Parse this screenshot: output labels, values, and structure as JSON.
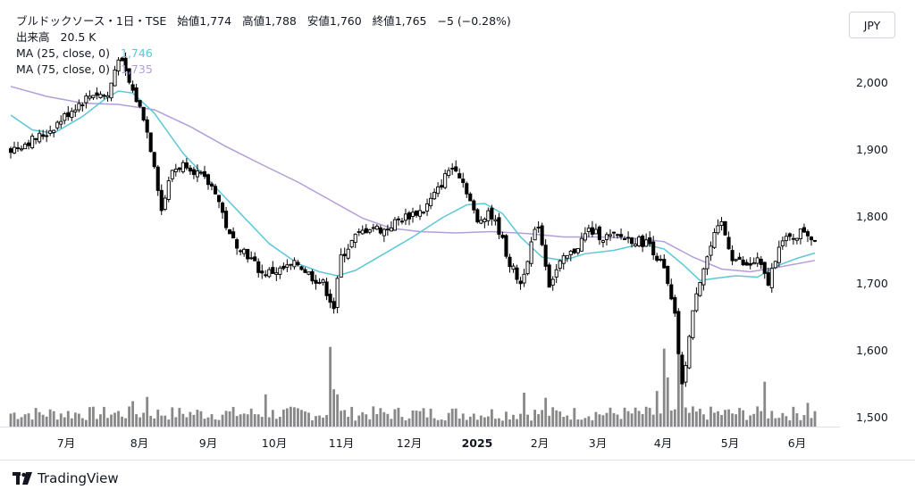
{
  "header": {
    "symbol": "ブルドックソース・1日・TSE",
    "open_label": "始値",
    "open": "1,774",
    "high_label": "高値",
    "high": "1,788",
    "low_label": "安値",
    "low": "1,760",
    "close_label": "終値",
    "close": "1,765",
    "change": "−5 (−0.28%)",
    "volume_label": "出来高",
    "volume": "20.5 K",
    "ma25_label": "MA (25, close, 0)",
    "ma25_value": "1,746",
    "ma75_label": "MA (75, close, 0)",
    "ma75_value": "1,735"
  },
  "currency_button": "JPY",
  "brand": "TradingView",
  "colors": {
    "ma25": "#5ac8d8",
    "ma75": "#b39ddb",
    "candle": "#000000",
    "volume": "#888888"
  },
  "chart_data": {
    "type": "candlestick",
    "y_ticks": [
      "2,000",
      "1,900",
      "1,800",
      "1,700",
      "1,600",
      "1,500"
    ],
    "x_ticks": [
      "7月",
      "8月",
      "9月",
      "10月",
      "11月",
      "12月",
      "2025",
      "2月",
      "3月",
      "4月",
      "5月",
      "6月"
    ],
    "ylim": [
      1490,
      2060
    ],
    "close_path": [
      {
        "day": 0,
        "close": 1900
      },
      {
        "day": 10,
        "close": 1925
      },
      {
        "day": 18,
        "close": 1965
      },
      {
        "day": 23,
        "close": 1985
      },
      {
        "day": 27,
        "close": 1980
      },
      {
        "day": 30,
        "close": 2040
      },
      {
        "day": 33,
        "close": 2000
      },
      {
        "day": 37,
        "close": 1950
      },
      {
        "day": 40,
        "close": 1880
      },
      {
        "day": 42,
        "close": 1810
      },
      {
        "day": 45,
        "close": 1870
      },
      {
        "day": 49,
        "close": 1880
      },
      {
        "day": 53,
        "close": 1860
      },
      {
        "day": 57,
        "close": 1840
      },
      {
        "day": 61,
        "close": 1770
      },
      {
        "day": 65,
        "close": 1750
      },
      {
        "day": 70,
        "close": 1715
      },
      {
        "day": 75,
        "close": 1720
      },
      {
        "day": 80,
        "close": 1730
      },
      {
        "day": 84,
        "close": 1710
      },
      {
        "day": 87,
        "close": 1700
      },
      {
        "day": 90,
        "close": 1665
      },
      {
        "day": 92,
        "close": 1740
      },
      {
        "day": 96,
        "close": 1770
      },
      {
        "day": 100,
        "close": 1785
      },
      {
        "day": 104,
        "close": 1780
      },
      {
        "day": 108,
        "close": 1795
      },
      {
        "day": 112,
        "close": 1805
      },
      {
        "day": 115,
        "close": 1810
      },
      {
        "day": 119,
        "close": 1840
      },
      {
        "day": 122,
        "close": 1870
      },
      {
        "day": 124,
        "close": 1875
      },
      {
        "day": 127,
        "close": 1840
      },
      {
        "day": 130,
        "close": 1790
      },
      {
        "day": 133,
        "close": 1810
      },
      {
        "day": 136,
        "close": 1780
      },
      {
        "day": 139,
        "close": 1730
      },
      {
        "day": 142,
        "close": 1700
      },
      {
        "day": 145,
        "close": 1760
      },
      {
        "day": 147,
        "close": 1790
      },
      {
        "day": 150,
        "close": 1700
      },
      {
        "day": 153,
        "close": 1730
      },
      {
        "day": 157,
        "close": 1750
      },
      {
        "day": 161,
        "close": 1780
      },
      {
        "day": 165,
        "close": 1770
      },
      {
        "day": 170,
        "close": 1770
      },
      {
        "day": 174,
        "close": 1765
      },
      {
        "day": 178,
        "close": 1760
      },
      {
        "day": 182,
        "close": 1720
      },
      {
        "day": 185,
        "close": 1650
      },
      {
        "day": 187,
        "close": 1545
      },
      {
        "day": 189,
        "close": 1620
      },
      {
        "day": 191,
        "close": 1690
      },
      {
        "day": 193,
        "close": 1725
      },
      {
        "day": 196,
        "close": 1770
      },
      {
        "day": 198,
        "close": 1790
      },
      {
        "day": 201,
        "close": 1740
      },
      {
        "day": 205,
        "close": 1725
      },
      {
        "day": 208,
        "close": 1735
      },
      {
        "day": 211,
        "close": 1700
      },
      {
        "day": 214,
        "close": 1760
      },
      {
        "day": 218,
        "close": 1770
      },
      {
        "day": 221,
        "close": 1780
      },
      {
        "day": 224,
        "close": 1765
      }
    ],
    "ma25_path": [
      {
        "day": 0,
        "value": 1952
      },
      {
        "day": 6,
        "value": 1930
      },
      {
        "day": 12,
        "value": 1925
      },
      {
        "day": 20,
        "value": 1950
      },
      {
        "day": 26,
        "value": 1975
      },
      {
        "day": 30,
        "value": 1988
      },
      {
        "day": 34,
        "value": 1985
      },
      {
        "day": 40,
        "value": 1955
      },
      {
        "day": 48,
        "value": 1895
      },
      {
        "day": 56,
        "value": 1850
      },
      {
        "day": 64,
        "value": 1805
      },
      {
        "day": 72,
        "value": 1760
      },
      {
        "day": 80,
        "value": 1730
      },
      {
        "day": 86,
        "value": 1718
      },
      {
        "day": 91,
        "value": 1712
      },
      {
        "day": 96,
        "value": 1720
      },
      {
        "day": 104,
        "value": 1745
      },
      {
        "day": 112,
        "value": 1770
      },
      {
        "day": 120,
        "value": 1798
      },
      {
        "day": 127,
        "value": 1818
      },
      {
        "day": 132,
        "value": 1820
      },
      {
        "day": 137,
        "value": 1805
      },
      {
        "day": 142,
        "value": 1770
      },
      {
        "day": 148,
        "value": 1740
      },
      {
        "day": 154,
        "value": 1735
      },
      {
        "day": 160,
        "value": 1745
      },
      {
        "day": 168,
        "value": 1750
      },
      {
        "day": 176,
        "value": 1760
      },
      {
        "day": 182,
        "value": 1752
      },
      {
        "day": 187,
        "value": 1730
      },
      {
        "day": 192,
        "value": 1705
      },
      {
        "day": 196,
        "value": 1708
      },
      {
        "day": 202,
        "value": 1712
      },
      {
        "day": 208,
        "value": 1710
      },
      {
        "day": 214,
        "value": 1728
      },
      {
        "day": 219,
        "value": 1738
      },
      {
        "day": 224,
        "value": 1746
      }
    ],
    "ma75_path": [
      {
        "day": 0,
        "value": 1995
      },
      {
        "day": 10,
        "value": 1980
      },
      {
        "day": 20,
        "value": 1970
      },
      {
        "day": 30,
        "value": 1968
      },
      {
        "day": 40,
        "value": 1960
      },
      {
        "day": 50,
        "value": 1935
      },
      {
        "day": 60,
        "value": 1905
      },
      {
        "day": 70,
        "value": 1878
      },
      {
        "day": 80,
        "value": 1852
      },
      {
        "day": 90,
        "value": 1822
      },
      {
        "day": 98,
        "value": 1798
      },
      {
        "day": 106,
        "value": 1783
      },
      {
        "day": 114,
        "value": 1778
      },
      {
        "day": 124,
        "value": 1776
      },
      {
        "day": 134,
        "value": 1778
      },
      {
        "day": 144,
        "value": 1775
      },
      {
        "day": 154,
        "value": 1770
      },
      {
        "day": 164,
        "value": 1770
      },
      {
        "day": 174,
        "value": 1768
      },
      {
        "day": 182,
        "value": 1763
      },
      {
        "day": 190,
        "value": 1740
      },
      {
        "day": 198,
        "value": 1722
      },
      {
        "day": 206,
        "value": 1718
      },
      {
        "day": 214,
        "value": 1725
      },
      {
        "day": 224,
        "value": 1735
      }
    ],
    "volume_spikes": [
      {
        "day": 89,
        "level": 0.94
      },
      {
        "day": 90,
        "level": 0.44
      },
      {
        "day": 91,
        "level": 0.38
      },
      {
        "day": 71,
        "level": 0.38
      },
      {
        "day": 143,
        "level": 0.4
      },
      {
        "day": 149,
        "level": 0.34
      },
      {
        "day": 180,
        "level": 0.42
      },
      {
        "day": 182,
        "level": 0.92
      },
      {
        "day": 183,
        "level": 0.58
      },
      {
        "day": 186,
        "level": 0.96
      },
      {
        "day": 187,
        "level": 0.66
      },
      {
        "day": 210,
        "level": 0.53
      },
      {
        "day": 222,
        "level": 0.28
      },
      {
        "day": 34,
        "level": 0.3
      },
      {
        "day": 38,
        "level": 0.35
      }
    ]
  }
}
